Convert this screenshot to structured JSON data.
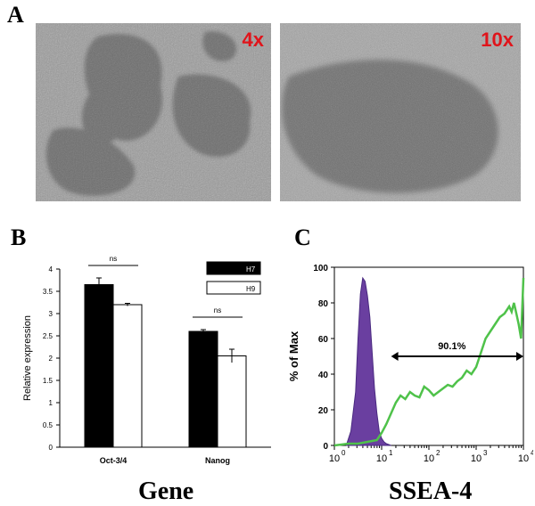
{
  "panel_a": {
    "letter": "A",
    "images": [
      {
        "magnification": "4x"
      },
      {
        "magnification": "10x"
      }
    ]
  },
  "panel_b": {
    "letter": "B",
    "xlabel": "Gene",
    "ylabel": "Relative expression",
    "significance_label": "ns"
  },
  "panel_c": {
    "letter": "C",
    "xlabel": "SSEA-4",
    "ylabel": "% of Max",
    "percentage_label": "90.1%"
  },
  "colors": {
    "magnification_text": "#e0141b",
    "h7_bar": "#000000",
    "h9_bar": "#ffffff",
    "isotype_fill": "#6a3fa0",
    "ssea4_line": "#4fc24a"
  },
  "chart_data": [
    {
      "type": "bar",
      "categories": [
        "Oct-3/4",
        "Nanog"
      ],
      "series": [
        {
          "name": "H7",
          "values": [
            3.65,
            2.6
          ],
          "errors": [
            0.15,
            0.04
          ]
        },
        {
          "name": "H9",
          "values": [
            3.2,
            2.05
          ],
          "errors": [
            0.03,
            0.15
          ]
        }
      ],
      "ylim": [
        0,
        4
      ],
      "yticks": [
        "0",
        "0.5",
        "1",
        "1.5",
        "2",
        "2.5",
        "3",
        "3.5",
        "4"
      ],
      "legend": "top-right",
      "annotations": [
        "ns",
        "ns"
      ]
    },
    {
      "type": "area",
      "x_scale": "log",
      "xlim": [
        0,
        4
      ],
      "ylim": [
        0,
        100
      ],
      "yticks": [
        "0",
        "20",
        "40",
        "60",
        "80",
        "100"
      ],
      "series": [
        {
          "name": "",
          "type": "area",
          "x": [
            0.25,
            0.35,
            0.45,
            0.5,
            0.55,
            0.6,
            0.65,
            0.7,
            0.75,
            0.8,
            0.85,
            0.9,
            0.95,
            1.0,
            1.05,
            1.1,
            1.2
          ],
          "y": [
            0,
            8,
            30,
            60,
            85,
            94,
            92,
            84,
            72,
            52,
            32,
            18,
            8,
            4,
            2,
            1,
            0
          ]
        },
        {
          "name": "",
          "type": "line",
          "x": [
            0.0,
            0.3,
            0.5,
            0.7,
            0.9,
            1.0,
            1.1,
            1.2,
            1.3,
            1.4,
            1.5,
            1.6,
            1.7,
            1.8,
            1.9,
            2.0,
            2.1,
            2.2,
            2.3,
            2.4,
            2.5,
            2.6,
            2.7,
            2.8,
            2.9,
            3.0,
            3.1,
            3.2,
            3.3,
            3.4,
            3.5,
            3.6,
            3.7,
            3.75,
            3.8,
            3.85,
            3.9,
            3.95,
            4.0
          ],
          "y": [
            0,
            1,
            1,
            2,
            3,
            7,
            12,
            18,
            24,
            28,
            26,
            30,
            28,
            27,
            33,
            31,
            28,
            30,
            32,
            34,
            33,
            36,
            38,
            42,
            40,
            44,
            52,
            60,
            64,
            68,
            72,
            74,
            78,
            75,
            80,
            74,
            68,
            60,
            94
          ]
        }
      ],
      "annotations": [
        "90.1%"
      ]
    }
  ]
}
